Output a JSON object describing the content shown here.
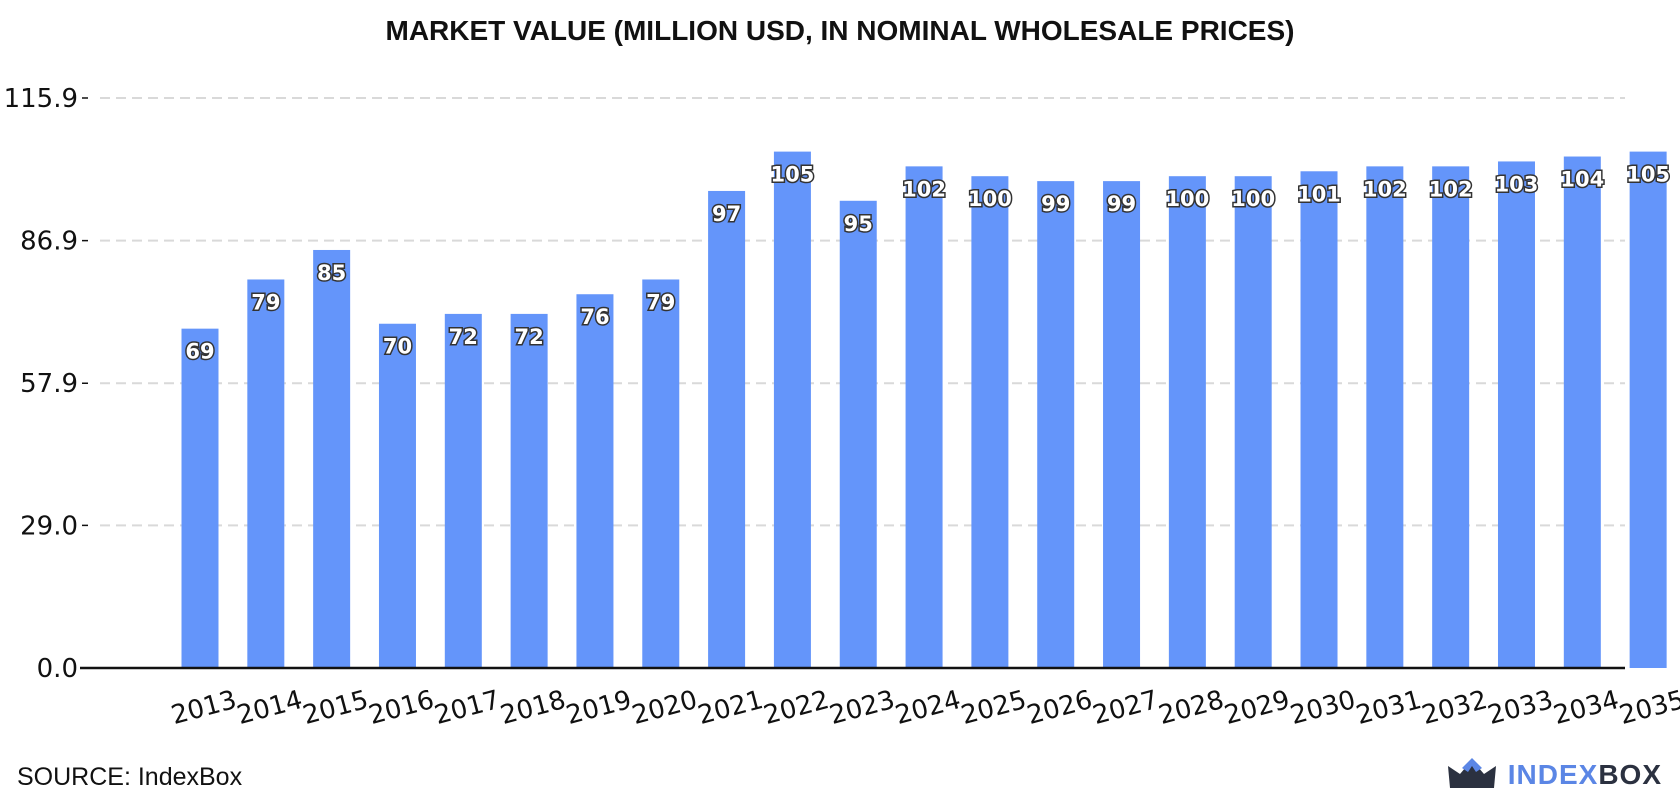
{
  "chart_data": {
    "type": "bar",
    "title": "MARKET VALUE (MILLION USD, IN NOMINAL WHOLESALE PRICES)",
    "xlabel": "",
    "ylabel": "",
    "ylim": [
      0,
      115.9
    ],
    "yticks": [
      "0.0",
      "29.0",
      "57.9",
      "86.9",
      "115.9"
    ],
    "categories": [
      "2013",
      "2014",
      "2015",
      "2016",
      "2017",
      "2018",
      "2019",
      "2020",
      "2021",
      "2022",
      "2023",
      "2024",
      "2025",
      "2026",
      "2027",
      "2028",
      "2029",
      "2030",
      "2031",
      "2032",
      "2033",
      "2034",
      "2035"
    ],
    "values": [
      69,
      79,
      85,
      70,
      72,
      72,
      76,
      79,
      97,
      105,
      95,
      102,
      100,
      99,
      99,
      100,
      100,
      101,
      102,
      102,
      103,
      104,
      105
    ],
    "labels": [
      "69",
      "79",
      "85",
      "70",
      "72",
      "72",
      "76",
      "79",
      "97",
      "105",
      "95",
      "102",
      "100",
      "99",
      "99",
      "100",
      "100",
      "101",
      "102",
      "102",
      "103",
      "104",
      "105"
    ],
    "grid": true,
    "bar_color": "#6495fa"
  },
  "footer": {
    "source": "SOURCE: IndexBox",
    "brand_part1": "INDEX",
    "brand_part2": "BOX"
  }
}
